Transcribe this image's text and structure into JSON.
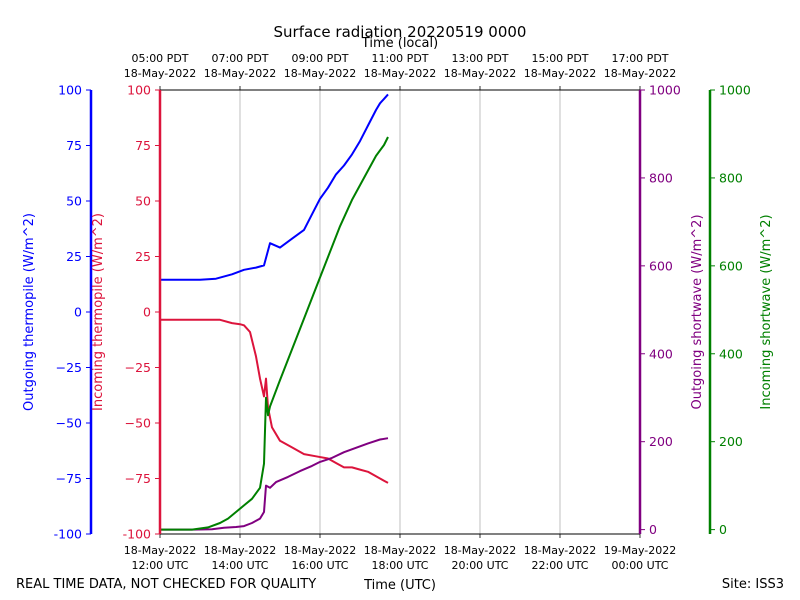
{
  "chart_data": {
    "type": "line",
    "title": "Surface radiation 20220519 0000",
    "top_axis_label": "Time (local)",
    "xlabel": "Time (UTC)",
    "footer_left": "REAL TIME DATA, NOT CHECKED FOR QUALITY",
    "footer_right": "Site: ISS3",
    "x_range_hours": [
      12,
      24
    ],
    "x_ticks": [
      {
        "hour": 12,
        "date": "18-May-2022",
        "utc": "12:00 UTC",
        "local_time": "05:00 PDT",
        "local_date": "18-May-2022"
      },
      {
        "hour": 14,
        "date": "18-May-2022",
        "utc": "14:00 UTC",
        "local_time": "07:00 PDT",
        "local_date": "18-May-2022"
      },
      {
        "hour": 16,
        "date": "18-May-2022",
        "utc": "16:00 UTC",
        "local_time": "09:00 PDT",
        "local_date": "18-May-2022"
      },
      {
        "hour": 18,
        "date": "18-May-2022",
        "utc": "18:00 UTC",
        "local_time": "11:00 PDT",
        "local_date": "18-May-2022"
      },
      {
        "hour": 20,
        "date": "18-May-2022",
        "utc": "20:00 UTC",
        "local_time": "13:00 PDT",
        "local_date": "18-May-2022"
      },
      {
        "hour": 22,
        "date": "18-May-2022",
        "utc": "22:00 UTC",
        "local_time": "15:00 PDT",
        "local_date": "18-May-2022"
      },
      {
        "hour": 24,
        "date": "19-May-2022",
        "utc": "00:00 UTC",
        "local_time": "17:00 PDT",
        "local_date": "18-May-2022"
      }
    ],
    "axes": [
      {
        "id": "outgoing_thermopile",
        "label": "Outgoing thermopile (W/m^2)",
        "color": "#0000ff",
        "range": [
          -100,
          100
        ],
        "ticks": [
          "-100",
          "−75",
          "−50",
          "−25",
          "0",
          "25",
          "50",
          "75",
          "100"
        ]
      },
      {
        "id": "incoming_thermopile",
        "label": "Incoming thermopile (W/m^2)",
        "color": "#dc143c",
        "range": [
          -100,
          100
        ],
        "ticks": [
          "-100",
          "−75",
          "−50",
          "−25",
          "0",
          "25",
          "50",
          "75",
          "100"
        ]
      },
      {
        "id": "outgoing_shortwave",
        "label": "Outgoing shortwave (W/m^2)",
        "color": "#800080",
        "range": [
          -10,
          1000
        ],
        "ticks": [
          "0",
          "200",
          "400",
          "600",
          "800",
          "1000"
        ]
      },
      {
        "id": "incoming_shortwave",
        "label": "Incoming shortwave (W/m^2)",
        "color": "#008000",
        "range": [
          -10,
          1000
        ],
        "ticks": [
          "0",
          "200",
          "400",
          "600",
          "800",
          "1000"
        ]
      }
    ],
    "series": [
      {
        "name": "Outgoing thermopile",
        "axis": "outgoing_thermopile",
        "color": "#0000ff",
        "points": [
          [
            12.0,
            14.5
          ],
          [
            12.5,
            14.5
          ],
          [
            13.0,
            14.5
          ],
          [
            13.4,
            15
          ],
          [
            13.8,
            17
          ],
          [
            14.1,
            19
          ],
          [
            14.4,
            20
          ],
          [
            14.6,
            21
          ],
          [
            14.75,
            31
          ],
          [
            15.0,
            29
          ],
          [
            15.3,
            33
          ],
          [
            15.6,
            37
          ],
          [
            15.8,
            44
          ],
          [
            16.0,
            51
          ],
          [
            16.2,
            56
          ],
          [
            16.4,
            62
          ],
          [
            16.6,
            66
          ],
          [
            16.8,
            71
          ],
          [
            17.0,
            77
          ],
          [
            17.2,
            84
          ],
          [
            17.4,
            91
          ],
          [
            17.5,
            94
          ],
          [
            17.6,
            96
          ],
          [
            17.7,
            98
          ]
        ]
      },
      {
        "name": "Incoming thermopile",
        "axis": "incoming_thermopile",
        "color": "#dc143c",
        "points": [
          [
            12.0,
            -3.5
          ],
          [
            12.5,
            -3.5
          ],
          [
            13.0,
            -3.5
          ],
          [
            13.5,
            -3.5
          ],
          [
            13.8,
            -5
          ],
          [
            14.0,
            -5.5
          ],
          [
            14.1,
            -6
          ],
          [
            14.25,
            -9
          ],
          [
            14.4,
            -20
          ],
          [
            14.5,
            -30
          ],
          [
            14.6,
            -38
          ],
          [
            14.65,
            -30
          ],
          [
            14.7,
            -43
          ],
          [
            14.8,
            -52
          ],
          [
            15.0,
            -58
          ],
          [
            15.3,
            -61
          ],
          [
            15.6,
            -64
          ],
          [
            15.9,
            -65
          ],
          [
            16.2,
            -66
          ],
          [
            16.4,
            -68
          ],
          [
            16.6,
            -70
          ],
          [
            16.8,
            -70
          ],
          [
            17.0,
            -71
          ],
          [
            17.2,
            -72
          ],
          [
            17.4,
            -74
          ],
          [
            17.6,
            -76
          ],
          [
            17.7,
            -77
          ]
        ]
      },
      {
        "name": "Outgoing shortwave",
        "axis": "outgoing_shortwave",
        "color": "#800080",
        "points": [
          [
            12.0,
            0
          ],
          [
            12.8,
            0
          ],
          [
            13.3,
            1
          ],
          [
            13.6,
            4
          ],
          [
            13.9,
            6
          ],
          [
            14.1,
            8
          ],
          [
            14.3,
            15
          ],
          [
            14.5,
            25
          ],
          [
            14.6,
            40
          ],
          [
            14.65,
            100
          ],
          [
            14.75,
            95
          ],
          [
            14.9,
            108
          ],
          [
            15.2,
            120
          ],
          [
            15.5,
            133
          ],
          [
            15.8,
            145
          ],
          [
            16.0,
            154
          ],
          [
            16.3,
            163
          ],
          [
            16.6,
            176
          ],
          [
            16.9,
            186
          ],
          [
            17.2,
            196
          ],
          [
            17.5,
            205
          ],
          [
            17.7,
            208
          ]
        ]
      },
      {
        "name": "Incoming shortwave",
        "axis": "incoming_shortwave",
        "color": "#008000",
        "points": [
          [
            12.0,
            0
          ],
          [
            12.8,
            0
          ],
          [
            13.2,
            5
          ],
          [
            13.5,
            15
          ],
          [
            13.7,
            25
          ],
          [
            13.9,
            40
          ],
          [
            14.1,
            55
          ],
          [
            14.3,
            70
          ],
          [
            14.5,
            95
          ],
          [
            14.6,
            150
          ],
          [
            14.65,
            300
          ],
          [
            14.7,
            260
          ],
          [
            14.75,
            280
          ],
          [
            15.0,
            340
          ],
          [
            15.3,
            410
          ],
          [
            15.6,
            480
          ],
          [
            15.9,
            550
          ],
          [
            16.2,
            620
          ],
          [
            16.5,
            690
          ],
          [
            16.8,
            750
          ],
          [
            17.1,
            800
          ],
          [
            17.4,
            850
          ],
          [
            17.6,
            875
          ],
          [
            17.7,
            893
          ]
        ]
      }
    ]
  }
}
